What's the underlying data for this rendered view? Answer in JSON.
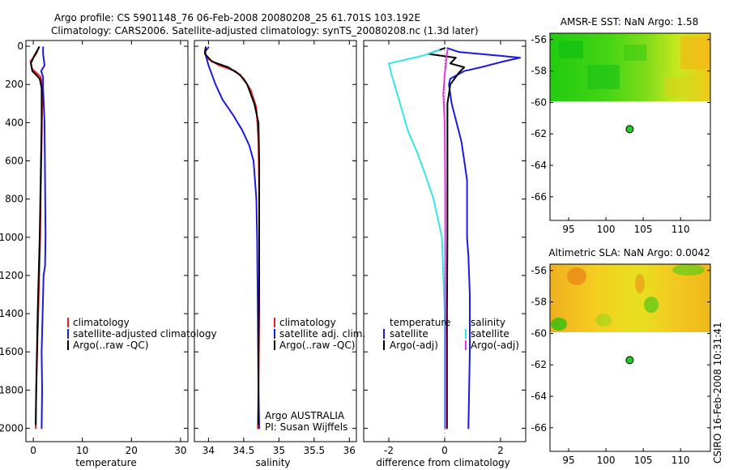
{
  "header": {
    "line1": "Argo profile: CS 5901148_76 06-Feb-2008 20080208_25 61.701S 103.192E",
    "line2": "Climatology: CARS2006. Satellite-adjusted climatology: synTS_20080208.nc (1.3d later)"
  },
  "colors": {
    "climatology": "#e8201a",
    "satellite": "#1a1ae0",
    "argo": "#000000",
    "satellite_salinity": "#33e6e6",
    "argo_adj_salinity": "#e633e0",
    "float_marker": "#22cc22",
    "map_low": "#00cc00",
    "map_mid": "#ffff00",
    "map_high": "#ff8000"
  },
  "footer": {
    "credit": "CSIRO 16-Feb-2008 10:31:41",
    "float_line1": "Argo AUSTRALIA",
    "float_line2": "PI: Susan Wijffels"
  },
  "chart_data": [
    {
      "id": "temperature",
      "type": "line",
      "title": "",
      "xlabel": "temperature",
      "ylabel": "",
      "xlim": [
        -1.5,
        31.5
      ],
      "ylim": [
        2070,
        -30
      ],
      "xticks": [
        0,
        10,
        20,
        30
      ],
      "yticks": [
        0,
        200,
        400,
        600,
        800,
        1000,
        1200,
        1400,
        1600,
        1800,
        2000
      ],
      "ytick_labels": [
        "0",
        "200",
        "400",
        "600",
        "800",
        "1000",
        "1200",
        "1400",
        "1600",
        "1800",
        "2000"
      ],
      "legend": [
        "climatology",
        "satellite-adjusted climatology",
        "Argo(..raw -QC)"
      ],
      "series": [
        {
          "name": "climatology",
          "color_key": "climatology",
          "points": [
            [
              1.1,
              5
            ],
            [
              0.6,
              40
            ],
            [
              -0.6,
              80
            ],
            [
              -0.2,
              120
            ],
            [
              1.5,
              160
            ],
            [
              1.8,
              200
            ],
            [
              1.8,
              300
            ],
            [
              1.7,
              500
            ],
            [
              1.5,
              800
            ],
            [
              1.4,
              1000
            ],
            [
              1.0,
              1400
            ],
            [
              0.6,
              1800
            ],
            [
              0.5,
              2000
            ]
          ]
        },
        {
          "name": "satellite-adjusted climatology",
          "color_key": "satellite",
          "points": [
            [
              2.0,
              5
            ],
            [
              2.0,
              40
            ],
            [
              2.3,
              100
            ],
            [
              1.6,
              130
            ],
            [
              2.0,
              160
            ],
            [
              2.0,
              220
            ],
            [
              2.3,
              400
            ],
            [
              2.4,
              700
            ],
            [
              2.5,
              1000
            ],
            [
              2.4,
              1150
            ],
            [
              2.1,
              1200
            ],
            [
              1.9,
              1400
            ],
            [
              1.7,
              1600
            ],
            [
              1.8,
              1800
            ],
            [
              1.7,
              2000
            ]
          ]
        },
        {
          "name": "Argo(..raw -QC)",
          "color_key": "argo",
          "points": [
            [
              1.2,
              5
            ],
            [
              0.2,
              50
            ],
            [
              -0.5,
              90
            ],
            [
              -0.2,
              130
            ],
            [
              1.3,
              170
            ],
            [
              1.7,
              220
            ],
            [
              1.7,
              400
            ],
            [
              1.5,
              700
            ],
            [
              1.3,
              1000
            ],
            [
              0.9,
              1400
            ],
            [
              0.6,
              1800
            ],
            [
              0.5,
              1980
            ]
          ]
        }
      ]
    },
    {
      "id": "salinity",
      "type": "line",
      "title": "",
      "xlabel": "salinity",
      "ylabel": "",
      "xlim": [
        33.8,
        36.1
      ],
      "ylim": [
        2070,
        -30
      ],
      "xticks": [
        34,
        34.5,
        35,
        35.5,
        36
      ],
      "xtick_labels": [
        "34",
        "34.5",
        "35",
        "35.5",
        "36"
      ],
      "yticks": [
        0,
        200,
        400,
        600,
        800,
        1000,
        1200,
        1400,
        1600,
        1800,
        2000
      ],
      "legend": [
        "climatology",
        "satellite adj. clim.",
        "Argo(..raw -QC)"
      ],
      "series": [
        {
          "name": "climatology",
          "color_key": "climatology",
          "points": [
            [
              33.95,
              20
            ],
            [
              33.97,
              60
            ],
            [
              34.15,
              100
            ],
            [
              34.38,
              130
            ],
            [
              34.5,
              170
            ],
            [
              34.6,
              230
            ],
            [
              34.68,
              320
            ],
            [
              34.71,
              500
            ],
            [
              34.72,
              800
            ],
            [
              34.72,
              1000
            ],
            [
              34.72,
              1400
            ],
            [
              34.71,
              1800
            ],
            [
              34.7,
              2000
            ]
          ]
        },
        {
          "name": "satellite adj. clim.",
          "color_key": "satellite",
          "points": [
            [
              34.0,
              5
            ],
            [
              33.95,
              30
            ],
            [
              33.97,
              60
            ],
            [
              34.0,
              100
            ],
            [
              34.1,
              200
            ],
            [
              34.2,
              280
            ],
            [
              34.35,
              360
            ],
            [
              34.48,
              440
            ],
            [
              34.58,
              520
            ],
            [
              34.64,
              600
            ],
            [
              34.68,
              800
            ],
            [
              34.69,
              1000
            ],
            [
              34.7,
              1400
            ],
            [
              34.71,
              1800
            ],
            [
              34.72,
              2000
            ]
          ]
        },
        {
          "name": "Argo(..raw -QC)",
          "color_key": "argo",
          "points": [
            [
              33.96,
              5
            ],
            [
              33.95,
              40
            ],
            [
              34.05,
              80
            ],
            [
              34.28,
              110
            ],
            [
              34.45,
              150
            ],
            [
              34.55,
              200
            ],
            [
              34.65,
              300
            ],
            [
              34.71,
              400
            ],
            [
              34.72,
              600
            ],
            [
              34.72,
              800
            ],
            [
              34.72,
              1000
            ],
            [
              34.72,
              1200
            ],
            [
              34.71,
              1600
            ],
            [
              34.71,
              1800
            ],
            [
              34.71,
              1980
            ]
          ]
        }
      ]
    },
    {
      "id": "difference",
      "type": "line",
      "title": "",
      "xlabel": "difference from climatology",
      "ylabel": "",
      "xlim": [
        -2.9,
        2.9
      ],
      "ylim": [
        2070,
        -30
      ],
      "xticks": [
        -2,
        0,
        2
      ],
      "yticks": [
        0,
        200,
        400,
        600,
        800,
        1000,
        1200,
        1400,
        1600,
        1800,
        2000
      ],
      "legend_temperature_heading": "temperature",
      "legend_salinity_heading": "salinity",
      "legend": [
        "satellite",
        "Argo(-adj)",
        "satellite",
        "Argo(-adj)"
      ],
      "series": [
        {
          "name": "temperature satellite",
          "color_key": "satellite",
          "points": [
            [
              0.1,
              10
            ],
            [
              0.5,
              30
            ],
            [
              2.0,
              50
            ],
            [
              2.7,
              60
            ],
            [
              2.1,
              80
            ],
            [
              1.3,
              110
            ],
            [
              0.7,
              130
            ],
            [
              0.2,
              170
            ],
            [
              0.15,
              200
            ],
            [
              0.25,
              300
            ],
            [
              0.6,
              500
            ],
            [
              0.8,
              700
            ],
            [
              0.8,
              1000
            ],
            [
              0.85,
              1100
            ],
            [
              0.9,
              1300
            ],
            [
              0.9,
              1600
            ],
            [
              0.85,
              2000
            ]
          ]
        },
        {
          "name": "temperature Argo(-adj)",
          "color_key": "argo",
          "points": [
            [
              0.0,
              10
            ],
            [
              -0.6,
              40
            ],
            [
              0.4,
              60
            ],
            [
              0.2,
              90
            ],
            [
              0.7,
              110
            ],
            [
              0.5,
              140
            ],
            [
              0.35,
              170
            ],
            [
              0.2,
              200
            ],
            [
              0.15,
              250
            ],
            [
              0.1,
              300
            ],
            [
              0.1,
              500
            ],
            [
              0.1,
              1000
            ],
            [
              0.08,
              1400
            ],
            [
              0.08,
              2000
            ]
          ]
        },
        {
          "name": "salinity satellite",
          "color_key": "satellite_salinity",
          "points": [
            [
              -0.2,
              20
            ],
            [
              -0.8,
              50
            ],
            [
              -2.0,
              90
            ],
            [
              -1.9,
              150
            ],
            [
              -1.7,
              250
            ],
            [
              -1.5,
              350
            ],
            [
              -1.3,
              450
            ],
            [
              -1.0,
              550
            ],
            [
              -0.75,
              650
            ],
            [
              -0.4,
              800
            ],
            [
              -0.1,
              1000
            ],
            [
              0.0,
              1400
            ],
            [
              0.0,
              2000
            ]
          ]
        },
        {
          "name": "salinity Argo(-adj)",
          "color_key": "argo_adj_salinity",
          "points": [
            [
              0.1,
              20
            ],
            [
              0.05,
              80
            ],
            [
              0.0,
              150
            ],
            [
              -0.05,
              250
            ],
            [
              0.0,
              400
            ],
            [
              0.02,
              800
            ],
            [
              0.02,
              1400
            ],
            [
              0.02,
              2000
            ]
          ]
        }
      ]
    },
    {
      "id": "amsre_sst_map",
      "type": "heatmap",
      "title": "AMSR-E SST: NaN Argo: 1.58",
      "xlim": [
        92.5,
        114
      ],
      "ylim": [
        -67.5,
        -55.6
      ],
      "xticks": [
        95,
        100,
        105,
        110
      ],
      "yticks": [
        -56,
        -58,
        -60,
        -62,
        -64,
        -66
      ],
      "data_lat_range": [
        -60,
        -55.6
      ],
      "float_position": [
        103.19,
        -61.7
      ],
      "field_note": "green (cool) to orange (warm) anomaly field north of 60S; no data south of 60S"
    },
    {
      "id": "altimetric_sla_map",
      "type": "heatmap",
      "title": "Altimetric SLA: NaN Argo: 0.0042",
      "xlim": [
        92.5,
        114
      ],
      "ylim": [
        -67.5,
        -55.6
      ],
      "xticks": [
        95,
        100,
        105,
        110
      ],
      "yticks": [
        -56,
        -58,
        -60,
        -62,
        -64,
        -66
      ],
      "data_lat_range": [
        -60,
        -55.6
      ],
      "float_position": [
        103.19,
        -61.7
      ],
      "field_note": "mostly yellow/orange field with green patches north of 60S; no data south of 60S"
    }
  ]
}
